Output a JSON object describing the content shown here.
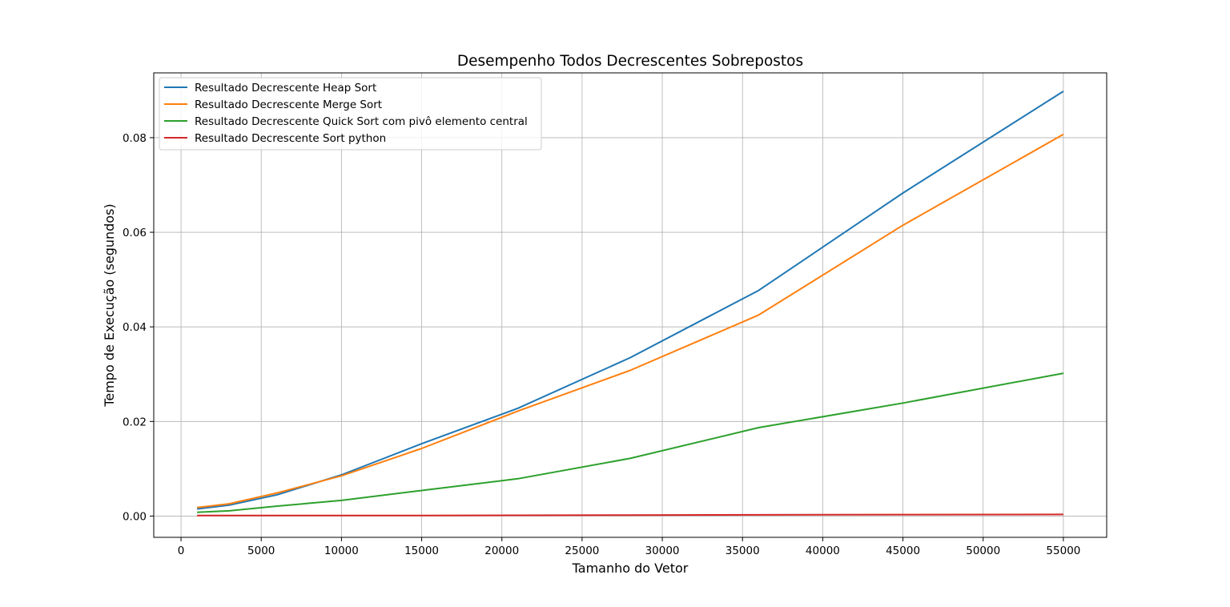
{
  "chart_data": {
    "type": "line",
    "title": "Desempenho Todos Decrescentes Sobrepostos",
    "xlabel": "Tamanho do Vetor",
    "ylabel": "Tempo de Execução (segundos)",
    "xlim": [
      -1700,
      57700
    ],
    "ylim": [
      -0.0045,
      0.0937
    ],
    "xticks": [
      0,
      5000,
      10000,
      15000,
      20000,
      25000,
      30000,
      35000,
      40000,
      45000,
      50000,
      55000
    ],
    "xtick_labels": [
      "0",
      "5000",
      "10000",
      "15000",
      "20000",
      "25000",
      "30000",
      "35000",
      "40000",
      "45000",
      "50000",
      "55000"
    ],
    "yticks": [
      0.0,
      0.02,
      0.04,
      0.06,
      0.08
    ],
    "ytick_labels": [
      "0.00",
      "0.02",
      "0.04",
      "0.06",
      "0.08"
    ],
    "grid": true,
    "legend_position": "upper-left",
    "x": [
      1000,
      3000,
      6000,
      10000,
      15000,
      21000,
      28000,
      36000,
      45000,
      55000
    ],
    "series": [
      {
        "name": "Resultado Decrescente Heap Sort",
        "color": "#1f77b4",
        "values": [
          0.0015,
          0.0023,
          0.0045,
          0.0087,
          0.0153,
          0.0228,
          0.0335,
          0.0477,
          0.0683,
          0.0898
        ]
      },
      {
        "name": "Resultado Decrescente Merge Sort",
        "color": "#ff7f0e",
        "values": [
          0.0018,
          0.0026,
          0.0049,
          0.0085,
          0.0143,
          0.0222,
          0.0308,
          0.0425,
          0.0615,
          0.0807
        ]
      },
      {
        "name": "Resultado Decrescente Quick Sort com pivô elemento central",
        "color": "#2ca02c",
        "values": [
          0.0008,
          0.0011,
          0.0021,
          0.0033,
          0.0054,
          0.0079,
          0.0122,
          0.0187,
          0.0239,
          0.0302
        ]
      },
      {
        "name": "Resultado Decrescente Sort python",
        "color": "#d62728",
        "values": [
          0.0001,
          0.0001,
          0.0001,
          0.0001,
          0.00012,
          0.00015,
          0.0002,
          0.00025,
          0.0003,
          0.00035
        ]
      }
    ]
  }
}
